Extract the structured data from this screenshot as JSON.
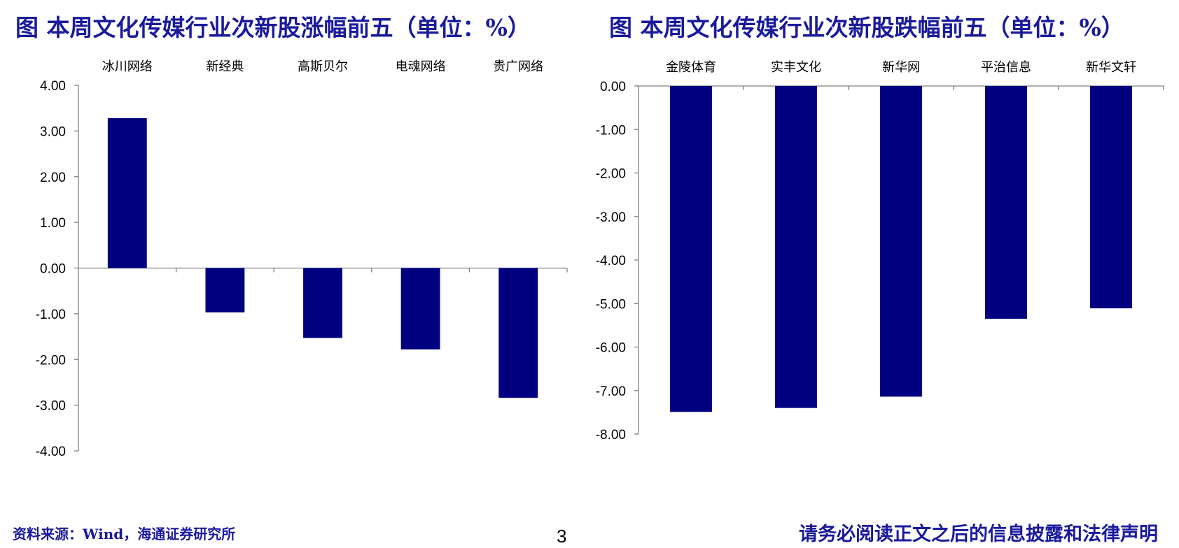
{
  "chart_data": [
    {
      "type": "bar",
      "title": "图 本周文化传媒行业次新股涨幅前五（单位：%）",
      "categories": [
        "冰川网络",
        "新经典",
        "高斯贝尔",
        "电魂网络",
        "贵广网络"
      ],
      "values": [
        3.28,
        -0.97,
        -1.53,
        -1.78,
        -2.84
      ],
      "ylim": [
        -4,
        4
      ],
      "yticks": [
        "4.00",
        "3.00",
        "2.00",
        "1.00",
        "0.00",
        "-1.00",
        "-2.00",
        "-3.00",
        "-4.00"
      ],
      "ytick_values": [
        4,
        3,
        2,
        1,
        0,
        -1,
        -2,
        -3,
        -4
      ],
      "category_labels_position": "top",
      "bar_color": "#000080",
      "grid": false
    },
    {
      "type": "bar",
      "title": "图 本周文化传媒行业次新股跌幅前五（单位：%）",
      "categories": [
        "金陵体育",
        "实丰文化",
        "新华网",
        "平治信息",
        "新华文轩"
      ],
      "values": [
        -7.49,
        -7.4,
        -7.14,
        -5.35,
        -5.11
      ],
      "ylim": [
        -8,
        0
      ],
      "yticks": [
        "0.00",
        "-1.00",
        "-2.00",
        "-3.00",
        "-4.00",
        "-5.00",
        "-6.00",
        "-7.00",
        "-8.00"
      ],
      "ytick_values": [
        0,
        -1,
        -2,
        -3,
        -4,
        -5,
        -6,
        -7,
        -8
      ],
      "category_labels_position": "top",
      "bar_color": "#000080",
      "grid": false
    }
  ],
  "footer": {
    "source": "资料来源：Wind，海通证券研究所",
    "page_number": "3",
    "disclaimer": "请务必阅读正文之后的信息披露和法律声明"
  }
}
